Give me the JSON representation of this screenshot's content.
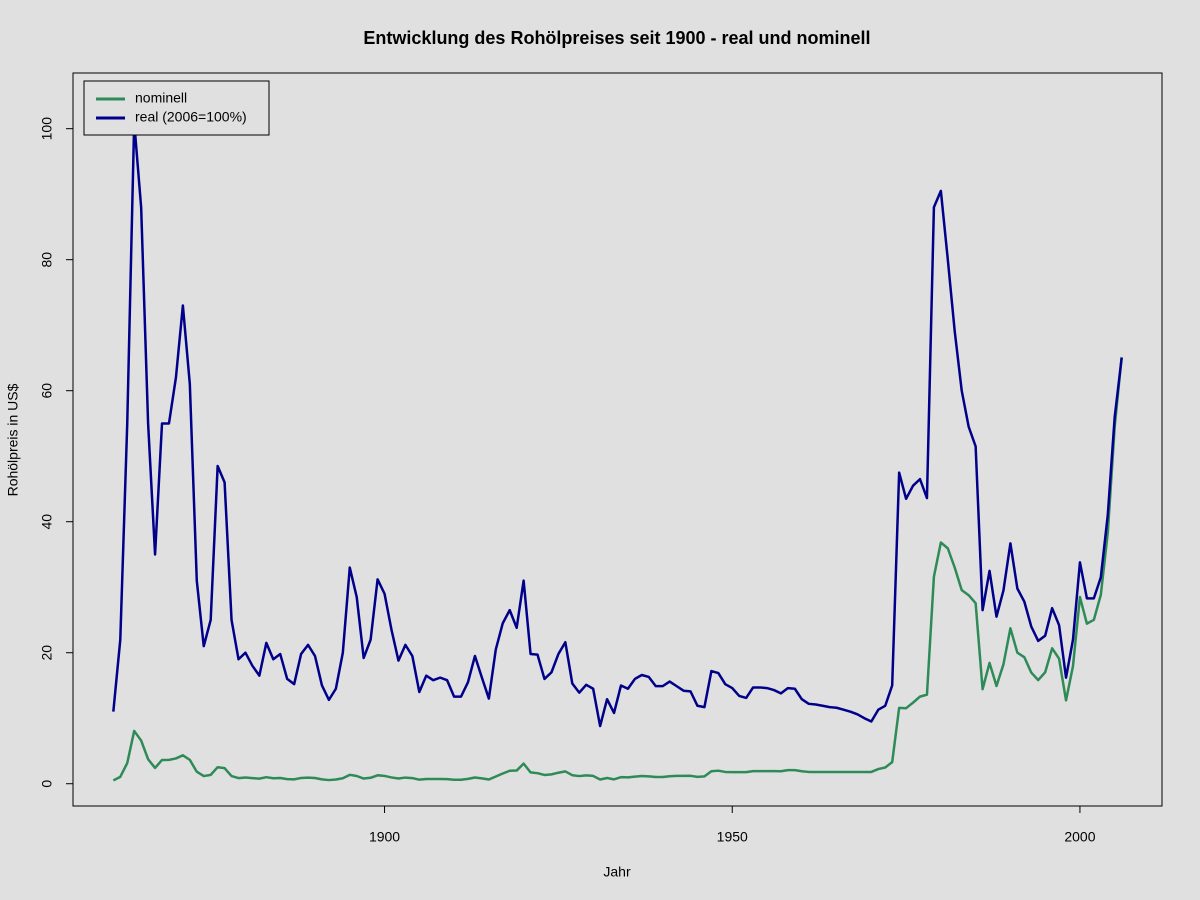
{
  "chart_data": {
    "type": "line",
    "title": "Entwicklung des Rohölpreises seit 1900 - real und nominell",
    "x_label": "Jahr",
    "y_label": "Rohölpreis in US$",
    "x": [
      1861,
      1862,
      1863,
      1864,
      1865,
      1866,
      1867,
      1868,
      1869,
      1870,
      1871,
      1872,
      1873,
      1874,
      1875,
      1876,
      1877,
      1878,
      1879,
      1880,
      1881,
      1882,
      1883,
      1884,
      1885,
      1886,
      1887,
      1888,
      1889,
      1890,
      1891,
      1892,
      1893,
      1894,
      1895,
      1896,
      1897,
      1898,
      1899,
      1900,
      1901,
      1902,
      1903,
      1904,
      1905,
      1906,
      1907,
      1908,
      1909,
      1910,
      1911,
      1912,
      1913,
      1914,
      1915,
      1916,
      1917,
      1918,
      1919,
      1920,
      1921,
      1922,
      1923,
      1924,
      1925,
      1926,
      1927,
      1928,
      1929,
      1930,
      1931,
      1932,
      1933,
      1934,
      1935,
      1936,
      1937,
      1938,
      1939,
      1940,
      1941,
      1942,
      1943,
      1944,
      1945,
      1946,
      1947,
      1948,
      1949,
      1950,
      1951,
      1952,
      1953,
      1954,
      1955,
      1956,
      1957,
      1958,
      1959,
      1960,
      1961,
      1962,
      1963,
      1964,
      1965,
      1966,
      1967,
      1968,
      1969,
      1970,
      1971,
      1972,
      1973,
      1974,
      1975,
      1976,
      1977,
      1978,
      1979,
      1980,
      1981,
      1982,
      1983,
      1984,
      1985,
      1986,
      1987,
      1988,
      1989,
      1990,
      1991,
      1992,
      1993,
      1994,
      1995,
      1996,
      1997,
      1998,
      1999,
      2000,
      2001,
      2002,
      2003,
      2004,
      2005,
      2006
    ],
    "series": [
      {
        "name": "nominell",
        "color": "#2e8b57",
        "values": [
          0.5,
          1.05,
          3.15,
          8.06,
          6.59,
          3.74,
          2.41,
          3.63,
          3.64,
          3.86,
          4.34,
          3.64,
          1.83,
          1.17,
          1.35,
          2.52,
          2.38,
          1.17,
          0.86,
          0.95,
          0.86,
          0.78,
          1.0,
          0.84,
          0.88,
          0.71,
          0.67,
          0.88,
          0.94,
          0.87,
          0.67,
          0.56,
          0.64,
          0.84,
          1.36,
          1.18,
          0.79,
          0.91,
          1.29,
          1.19,
          0.96,
          0.8,
          0.94,
          0.86,
          0.62,
          0.73,
          0.72,
          0.72,
          0.7,
          0.61,
          0.61,
          0.74,
          0.95,
          0.81,
          0.64,
          1.1,
          1.56,
          1.98,
          2.01,
          3.07,
          1.73,
          1.61,
          1.34,
          1.43,
          1.68,
          1.88,
          1.3,
          1.17,
          1.27,
          1.19,
          0.65,
          0.87,
          0.67,
          1.0,
          0.97,
          1.09,
          1.18,
          1.13,
          1.02,
          1.02,
          1.14,
          1.19,
          1.2,
          1.21,
          1.05,
          1.12,
          1.9,
          1.99,
          1.8,
          1.78,
          1.77,
          1.77,
          1.93,
          1.93,
          1.93,
          1.93,
          1.9,
          2.08,
          2.08,
          1.9,
          1.8,
          1.8,
          1.8,
          1.8,
          1.8,
          1.8,
          1.8,
          1.8,
          1.8,
          1.8,
          2.24,
          2.48,
          3.29,
          11.58,
          11.53,
          12.38,
          13.3,
          13.6,
          31.61,
          36.83,
          35.93,
          32.97,
          29.55,
          28.78,
          27.56,
          14.43,
          18.44,
          14.92,
          18.23,
          23.73,
          20.0,
          19.32,
          16.97,
          15.82,
          17.02,
          20.67,
          19.09,
          12.72,
          17.97,
          28.5,
          24.44,
          25.02,
          28.83,
          38.27,
          54.52,
          65.14
        ]
      },
      {
        "name": "real (2006=100%)",
        "color": "#00008b",
        "values": [
          11,
          22,
          55,
          101,
          88,
          55,
          35,
          55,
          55,
          62,
          73,
          61,
          31,
          21,
          25,
          48.5,
          46,
          25,
          19,
          20,
          18,
          16.5,
          21.5,
          19,
          19.8,
          16,
          15.2,
          19.8,
          21.2,
          19.5,
          15,
          12.8,
          14.5,
          20,
          33,
          28.5,
          19.2,
          22,
          31.2,
          29,
          23.5,
          18.8,
          21.2,
          19.5,
          14,
          16.5,
          15.8,
          16.2,
          15.8,
          13.3,
          13.3,
          15.5,
          19.5,
          16.2,
          13,
          20.5,
          24.5,
          26.5,
          23.8,
          31,
          19.8,
          19.7,
          16,
          17,
          19.8,
          21.6,
          15.3,
          13.9,
          15.1,
          14.5,
          8.8,
          12.9,
          10.8,
          15,
          14.5,
          16,
          16.6,
          16.3,
          14.9,
          14.9,
          15.6,
          14.9,
          14.2,
          14.1,
          11.9,
          11.7,
          17.2,
          16.9,
          15.2,
          14.6,
          13.4,
          13.1,
          14.7,
          14.7,
          14.6,
          14.3,
          13.8,
          14.6,
          14.5,
          12.9,
          12.2,
          12.1,
          11.9,
          11.7,
          11.6,
          11.3,
          11,
          10.6,
          10,
          9.5,
          11.3,
          11.9,
          15,
          47.5,
          43.5,
          45.5,
          46.5,
          43.6,
          88,
          90.5,
          80,
          69,
          60,
          54.5,
          51.5,
          26.5,
          32.5,
          25.5,
          29.5,
          36.7,
          29.8,
          27.8,
          24,
          21.8,
          22.6,
          26.8,
          24.2,
          16.2,
          22,
          33.8,
          28.3,
          28.3,
          31.5,
          41,
          56,
          65
        ]
      }
    ],
    "xlim": [
      1855.2,
      2011.8
    ],
    "xticks": [
      1900,
      1950,
      2000
    ],
    "ylim": [
      -3.4,
      108.5
    ],
    "yticks": [
      0,
      20,
      40,
      60,
      80,
      100
    ],
    "legend": "top-left"
  }
}
